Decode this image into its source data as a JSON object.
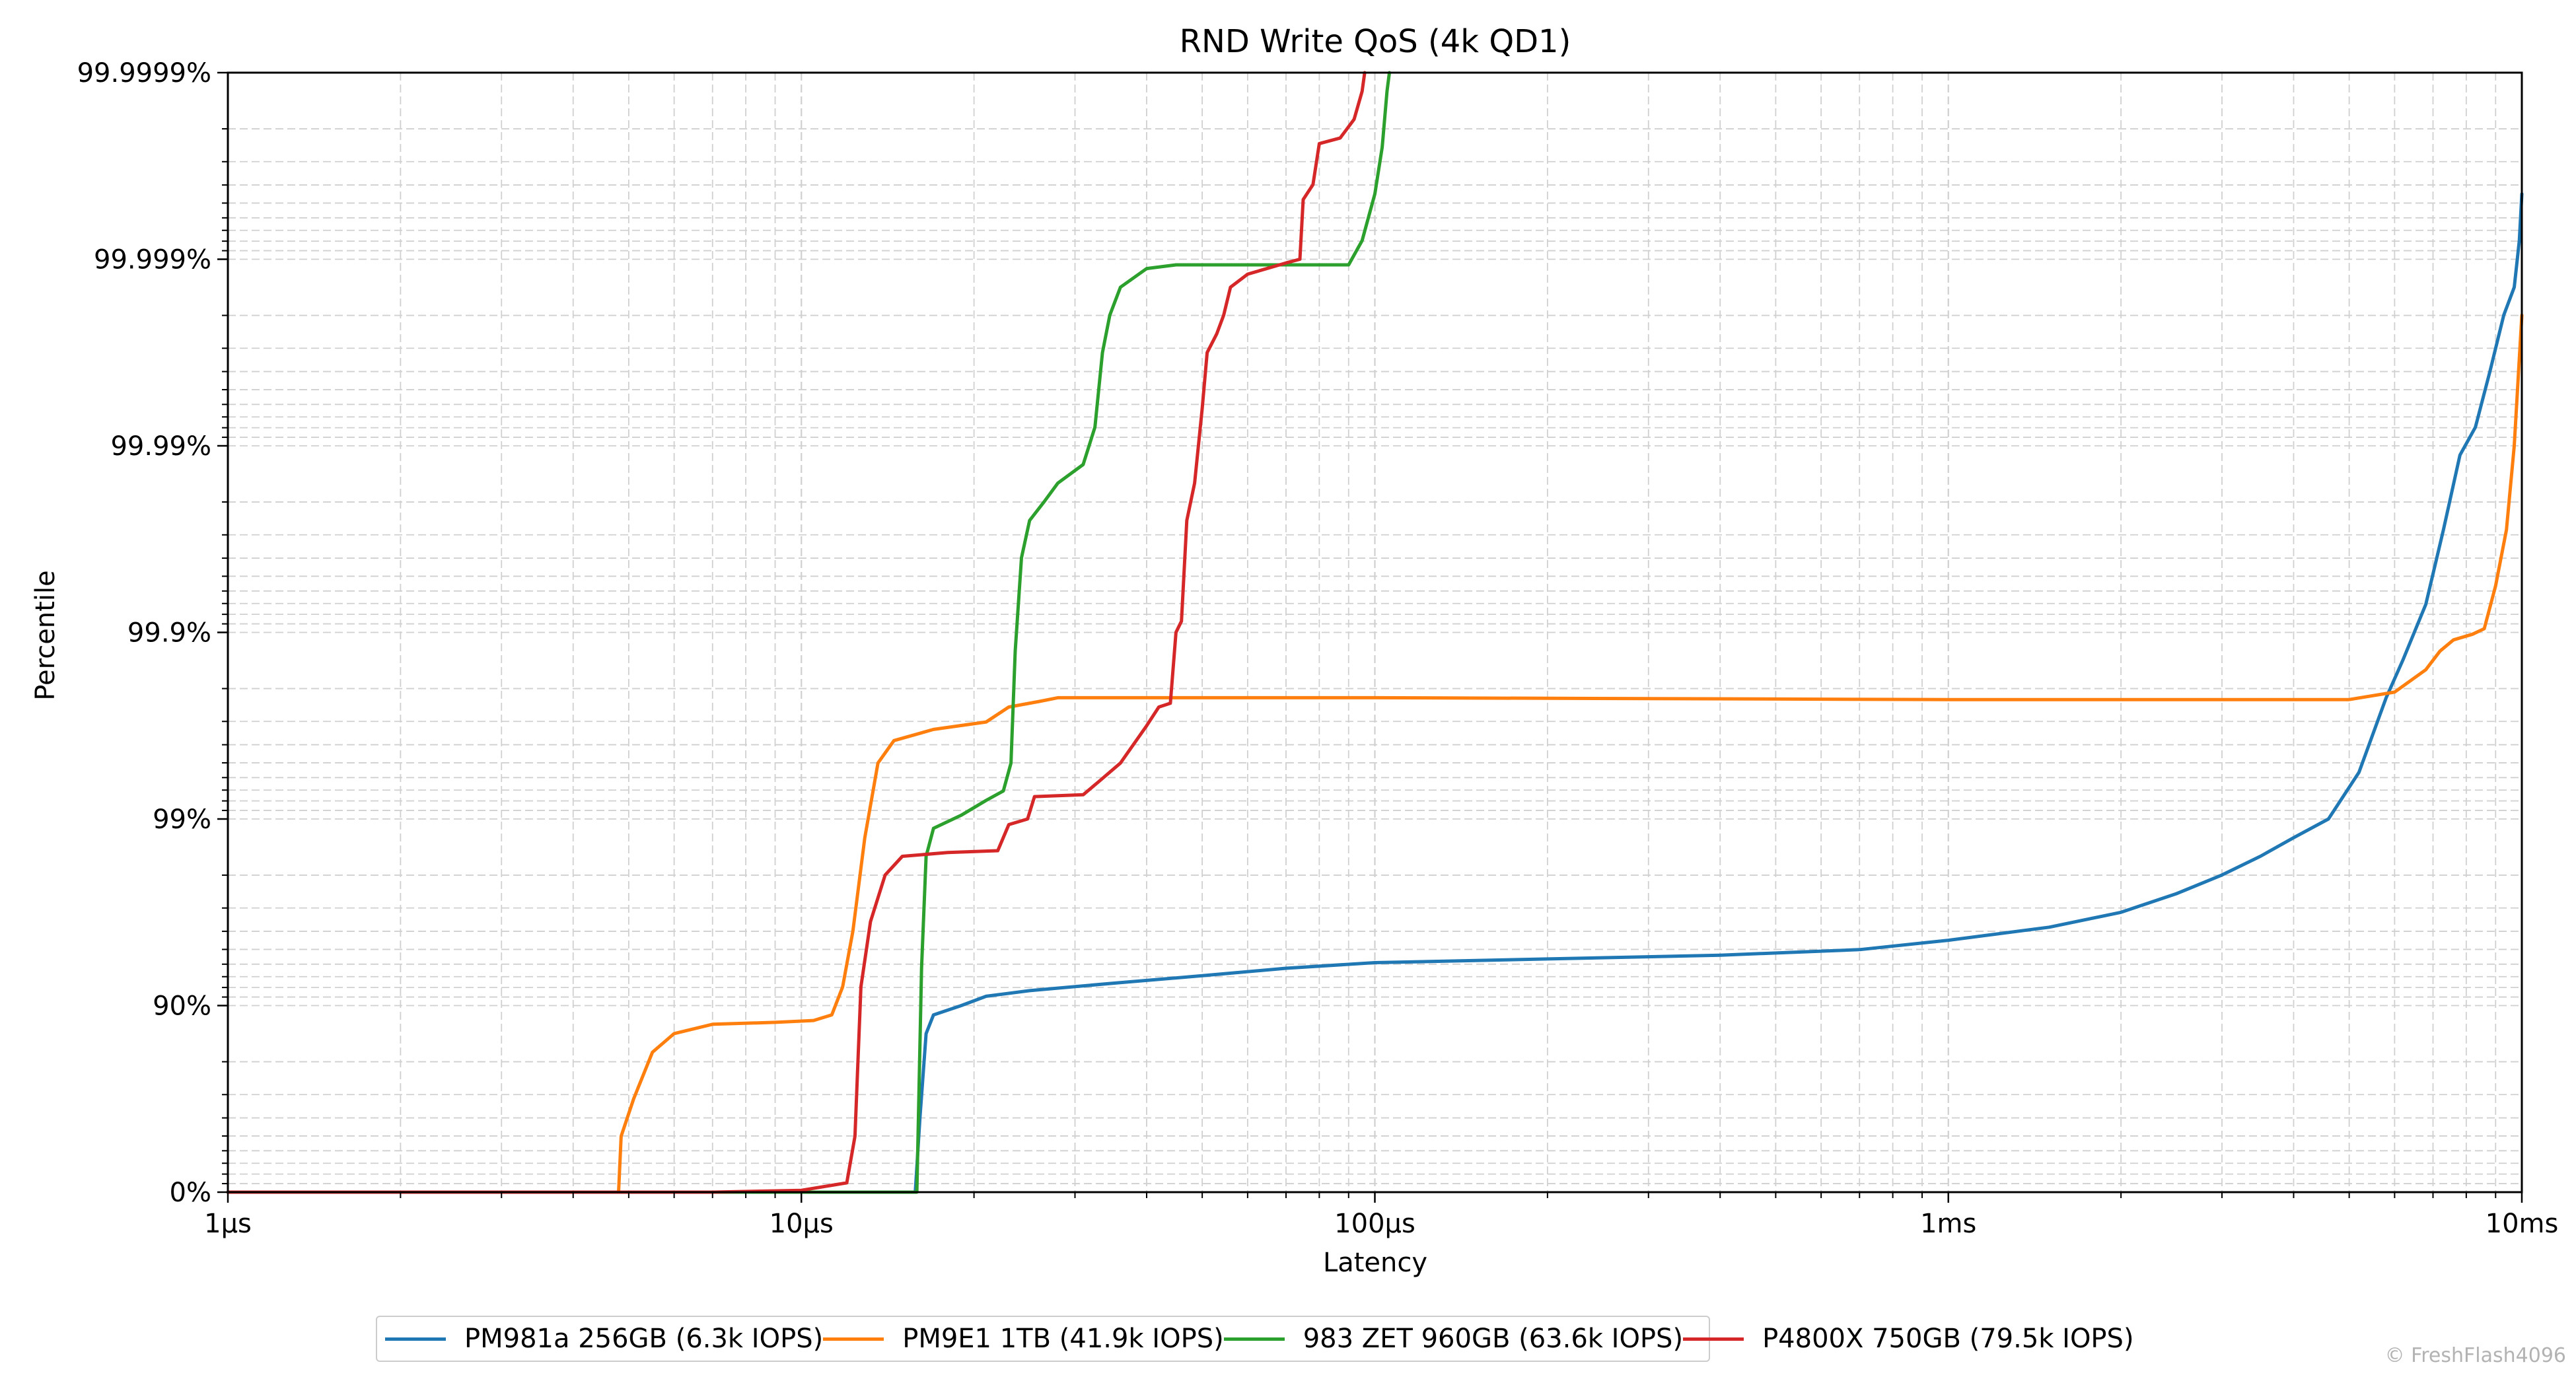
{
  "chart_data": {
    "type": "line",
    "title": "RND Write QoS (4k QD1)",
    "xlabel": "Latency",
    "ylabel": "Percentile",
    "x_scale": "log",
    "y_scale": "percentile-nines",
    "xlim_us": [
      1,
      10000
    ],
    "ylim_nines": [
      0,
      6
    ],
    "x_ticks": [
      {
        "value_us": 1,
        "label": "1µs"
      },
      {
        "value_us": 10,
        "label": "10µs"
      },
      {
        "value_us": 100,
        "label": "100µs"
      },
      {
        "value_us": 1000,
        "label": "1ms"
      },
      {
        "value_us": 10000,
        "label": "10ms"
      }
    ],
    "y_ticks": [
      {
        "nines": 0,
        "label": "0%"
      },
      {
        "nines": 1,
        "label": "90%"
      },
      {
        "nines": 2,
        "label": "99%"
      },
      {
        "nines": 3,
        "label": "99.9%"
      },
      {
        "nines": 4,
        "label": "99.99%"
      },
      {
        "nines": 5,
        "label": "99.999%"
      },
      {
        "nines": 6,
        "label": "99.9999%"
      }
    ],
    "grid": true,
    "legend_position": "bottom",
    "series": [
      {
        "name": "PM981a 256GB (6.3k IOPS)",
        "color": "#1f77b4",
        "points_us_nines": [
          [
            1,
            0
          ],
          [
            15.8,
            0
          ],
          [
            16.1,
            0.4
          ],
          [
            16.5,
            0.85
          ],
          [
            17,
            0.95
          ],
          [
            19,
            1.0
          ],
          [
            21,
            1.05
          ],
          [
            25,
            1.08
          ],
          [
            35,
            1.12
          ],
          [
            50,
            1.16
          ],
          [
            70,
            1.2
          ],
          [
            100,
            1.23
          ],
          [
            200,
            1.25
          ],
          [
            400,
            1.27
          ],
          [
            700,
            1.3
          ],
          [
            1000,
            1.35
          ],
          [
            1500,
            1.42
          ],
          [
            2000,
            1.5
          ],
          [
            2500,
            1.6
          ],
          [
            3000,
            1.7
          ],
          [
            3500,
            1.8
          ],
          [
            4000,
            1.9
          ],
          [
            4600,
            2.0
          ],
          [
            5200,
            2.25
          ],
          [
            5800,
            2.65
          ],
          [
            6200,
            2.85
          ],
          [
            6800,
            3.15
          ],
          [
            7300,
            3.55
          ],
          [
            7800,
            3.95
          ],
          [
            8300,
            4.1
          ],
          [
            8800,
            4.4
          ],
          [
            9300,
            4.7
          ],
          [
            9700,
            4.85
          ],
          [
            9900,
            5.1
          ],
          [
            10000,
            5.35
          ]
        ]
      },
      {
        "name": "PM9E1 1TB (41.9k IOPS)",
        "color": "#ff7f0e",
        "points_us_nines": [
          [
            1,
            0
          ],
          [
            4.8,
            0
          ],
          [
            4.85,
            0.3
          ],
          [
            5.1,
            0.5
          ],
          [
            5.5,
            0.75
          ],
          [
            6,
            0.85
          ],
          [
            7,
            0.9
          ],
          [
            9,
            0.91
          ],
          [
            10.5,
            0.92
          ],
          [
            11.3,
            0.95
          ],
          [
            11.8,
            1.1
          ],
          [
            12.3,
            1.4
          ],
          [
            12.9,
            1.9
          ],
          [
            13.6,
            2.3
          ],
          [
            14.5,
            2.42
          ],
          [
            17,
            2.48
          ],
          [
            21,
            2.52
          ],
          [
            23,
            2.6
          ],
          [
            26,
            2.63
          ],
          [
            28,
            2.65
          ],
          [
            100,
            2.65
          ],
          [
            1000,
            2.64
          ],
          [
            5000,
            2.64
          ],
          [
            6000,
            2.68
          ],
          [
            6800,
            2.8
          ],
          [
            7200,
            2.9
          ],
          [
            7600,
            2.96
          ],
          [
            8200,
            2.99
          ],
          [
            8600,
            3.02
          ],
          [
            9000,
            3.25
          ],
          [
            9400,
            3.55
          ],
          [
            9700,
            4.0
          ],
          [
            10000,
            4.7
          ]
        ]
      },
      {
        "name": "983 ZET 960GB (63.6k IOPS)",
        "color": "#2ca02c",
        "points_us_nines": [
          [
            1,
            0
          ],
          [
            15.9,
            0
          ],
          [
            16.2,
            1.2
          ],
          [
            16.5,
            1.8
          ],
          [
            17,
            1.95
          ],
          [
            19,
            2.02
          ],
          [
            21,
            2.1
          ],
          [
            22.5,
            2.15
          ],
          [
            23.2,
            2.3
          ],
          [
            23.6,
            2.9
          ],
          [
            24.2,
            3.4
          ],
          [
            25,
            3.6
          ],
          [
            26.5,
            3.7
          ],
          [
            28,
            3.8
          ],
          [
            31,
            3.9
          ],
          [
            32.5,
            4.1
          ],
          [
            33.5,
            4.5
          ],
          [
            34.5,
            4.7
          ],
          [
            36,
            4.85
          ],
          [
            40,
            4.95
          ],
          [
            45,
            4.97
          ],
          [
            70,
            4.97
          ],
          [
            90,
            4.97
          ],
          [
            95,
            5.1
          ],
          [
            100,
            5.35
          ],
          [
            103,
            5.6
          ],
          [
            105,
            5.9
          ],
          [
            106,
            6.0
          ]
        ]
      },
      {
        "name": "P4800X 750GB (79.5k IOPS)",
        "color": "#d62728",
        "points_us_nines": [
          [
            1,
            0
          ],
          [
            7,
            0
          ],
          [
            10,
            0.01
          ],
          [
            12,
            0.05
          ],
          [
            12.4,
            0.3
          ],
          [
            12.7,
            1.1
          ],
          [
            13.2,
            1.45
          ],
          [
            14,
            1.7
          ],
          [
            15,
            1.8
          ],
          [
            18,
            1.82
          ],
          [
            22,
            1.83
          ],
          [
            23,
            1.97
          ],
          [
            24.8,
            2.0
          ],
          [
            25.5,
            2.12
          ],
          [
            31,
            2.13
          ],
          [
            33,
            2.2
          ],
          [
            36,
            2.3
          ],
          [
            40,
            2.5
          ],
          [
            42,
            2.6
          ],
          [
            44,
            2.62
          ],
          [
            45,
            3.0
          ],
          [
            46,
            3.06
          ],
          [
            47,
            3.6
          ],
          [
            48.5,
            3.8
          ],
          [
            50,
            4.2
          ],
          [
            51,
            4.5
          ],
          [
            53,
            4.6
          ],
          [
            54.5,
            4.7
          ],
          [
            56,
            4.85
          ],
          [
            60,
            4.92
          ],
          [
            70,
            4.98
          ],
          [
            74,
            5.0
          ],
          [
            75,
            5.32
          ],
          [
            78,
            5.4
          ],
          [
            80,
            5.62
          ],
          [
            87,
            5.65
          ],
          [
            92,
            5.75
          ],
          [
            95,
            5.9
          ],
          [
            96,
            6.0
          ]
        ]
      }
    ],
    "watermark": "© FreshFlash4096"
  }
}
